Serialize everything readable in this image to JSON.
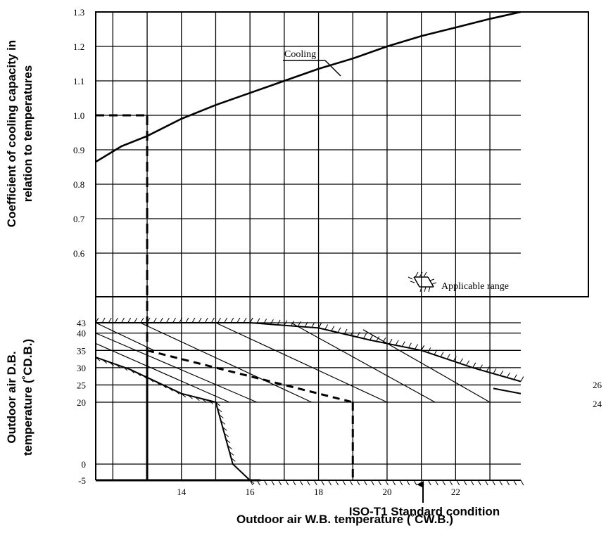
{
  "chart_data": {
    "type": "line",
    "x_axis": {
      "label": "Outdoor air W.B. temperature (˚CW.B.)",
      "range": [
        11.5,
        23.9
      ],
      "ticks": [
        14,
        16,
        18,
        20,
        22
      ],
      "grid_step": 1
    },
    "upper_panel": {
      "ylabel": "Coefficient of cooling capacity in relation to temperatures",
      "y_ticks": [
        "0.6",
        "0.7",
        "0.8",
        "0.9",
        "1.0",
        "1.1",
        "1.2",
        "1.3"
      ],
      "y_tick_values": [
        0.6,
        0.7,
        0.8,
        0.9,
        1.0,
        1.1,
        1.2,
        1.3
      ],
      "ylim": [
        0.43,
        1.3
      ],
      "series": [
        {
          "name": "Cooling",
          "x": [
            11.5,
            12.25,
            13.0,
            14.0,
            15.0,
            16.0,
            17.0,
            18.0,
            19.0,
            20.0,
            21.0,
            22.0,
            23.0,
            23.9
          ],
          "y": [
            0.865,
            0.91,
            0.94,
            0.99,
            1.03,
            1.065,
            1.1,
            1.135,
            1.165,
            1.2,
            1.23,
            1.255,
            1.28,
            1.3
          ]
        }
      ],
      "reference": {
        "x": 13.0,
        "y": 1.0
      }
    },
    "lower_panel": {
      "ylabel": "Outdoor air D.B. temperature (˚CD.B.)",
      "y_ticks": [
        "-5",
        "0",
        "20",
        "25",
        "30",
        "35",
        "40",
        "43"
      ],
      "y_tick_values": [
        -5,
        0,
        20,
        25,
        30,
        35,
        40,
        43
      ],
      "right_labels": [
        "26",
        "24"
      ],
      "right_label_values": [
        26,
        24
      ],
      "reference_start": {
        "x": 13.0,
        "y": 35
      },
      "reference_end": {
        "x": 19.0,
        "y": 20
      },
      "standard_condition": {
        "x": 19.0,
        "label": "ISO-T1 Standard condition"
      },
      "legend_text": "Applicable range"
    }
  }
}
